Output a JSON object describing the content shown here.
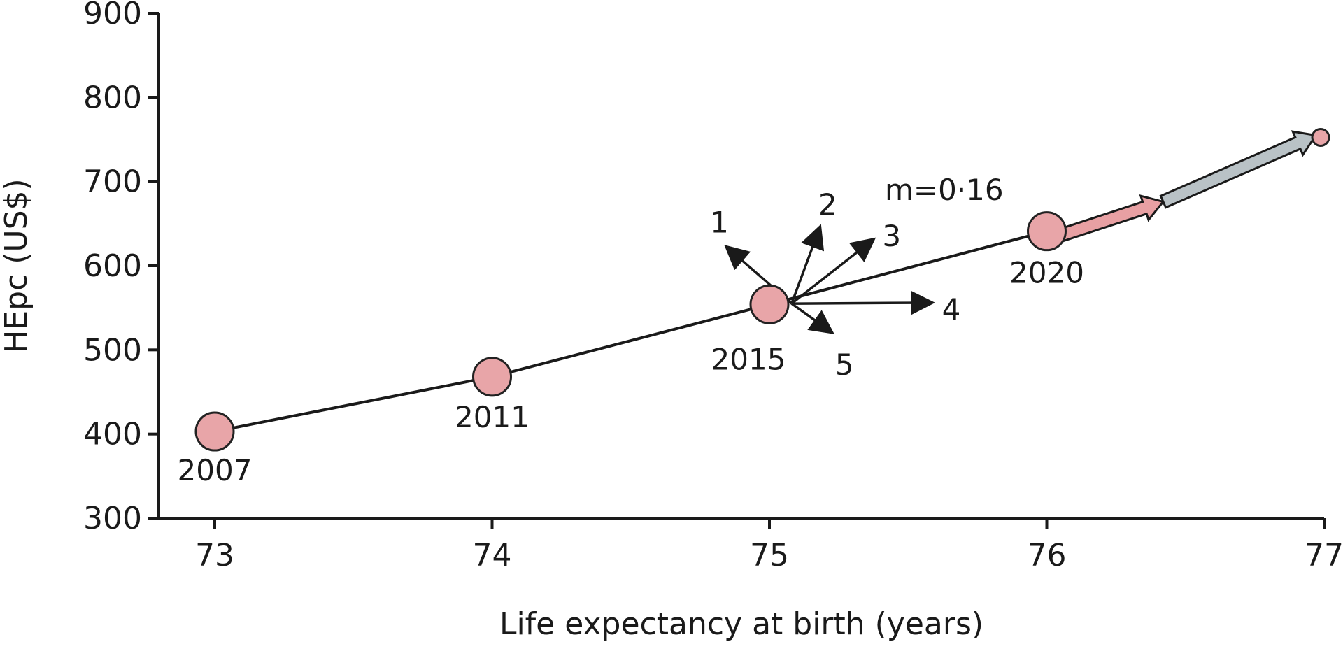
{
  "chart_data": {
    "type": "scatter",
    "title": "",
    "xlabel": "Life expectancy at birth (years)",
    "ylabel": "HEpc (US$)",
    "xlim": [
      72.8,
      77
    ],
    "ylim": [
      300,
      900
    ],
    "x_ticks": [
      {
        "value": 73,
        "label": "73"
      },
      {
        "value": 74,
        "label": "74"
      },
      {
        "value": 75,
        "label": "75"
      },
      {
        "value": 76,
        "label": "76"
      },
      {
        "value": 77,
        "label": "77"
      }
    ],
    "y_ticks": [
      {
        "value": 300,
        "label": "300"
      },
      {
        "value": 400,
        "label": "400"
      },
      {
        "value": 500,
        "label": "500"
      },
      {
        "value": 600,
        "label": "600"
      },
      {
        "value": 700,
        "label": "700"
      },
      {
        "value": 800,
        "label": "800"
      },
      {
        "value": 900,
        "label": "900"
      }
    ],
    "grid": false,
    "points": [
      {
        "label": "2007",
        "x": 73.0,
        "y": 403
      },
      {
        "label": "2011",
        "x": 74.0,
        "y": 468
      },
      {
        "label": "2015",
        "x": 75.0,
        "y": 554
      },
      {
        "label": "2020",
        "x": 76.0,
        "y": 641
      }
    ],
    "projection_point": {
      "x": 77.0,
      "y": 755
    },
    "projection_arrows": [
      {
        "from": [
          76.03,
          634
        ],
        "to": [
          76.42,
          676
        ],
        "color": "#e8a0a3"
      },
      {
        "from": [
          76.42,
          676
        ],
        "to": [
          76.97,
          755
        ],
        "color": "#b9c2c6"
      }
    ],
    "direction_arrows": [
      {
        "label": "1",
        "to": [
          74.85,
          621
        ]
      },
      {
        "label": "2",
        "to": [
          75.18,
          644
        ]
      },
      {
        "label": "3",
        "to": [
          75.37,
          630
        ]
      },
      {
        "label": "4",
        "to": [
          75.58,
          556
        ]
      },
      {
        "label": "5",
        "to": [
          75.22,
          522
        ]
      }
    ],
    "direction_origin": [
      75.08,
      555
    ],
    "annotation": "m=0·16",
    "colors": {
      "marker_fill": "#e8a5a8",
      "marker_stroke": "#222222",
      "line": "#1a1a1a"
    }
  }
}
